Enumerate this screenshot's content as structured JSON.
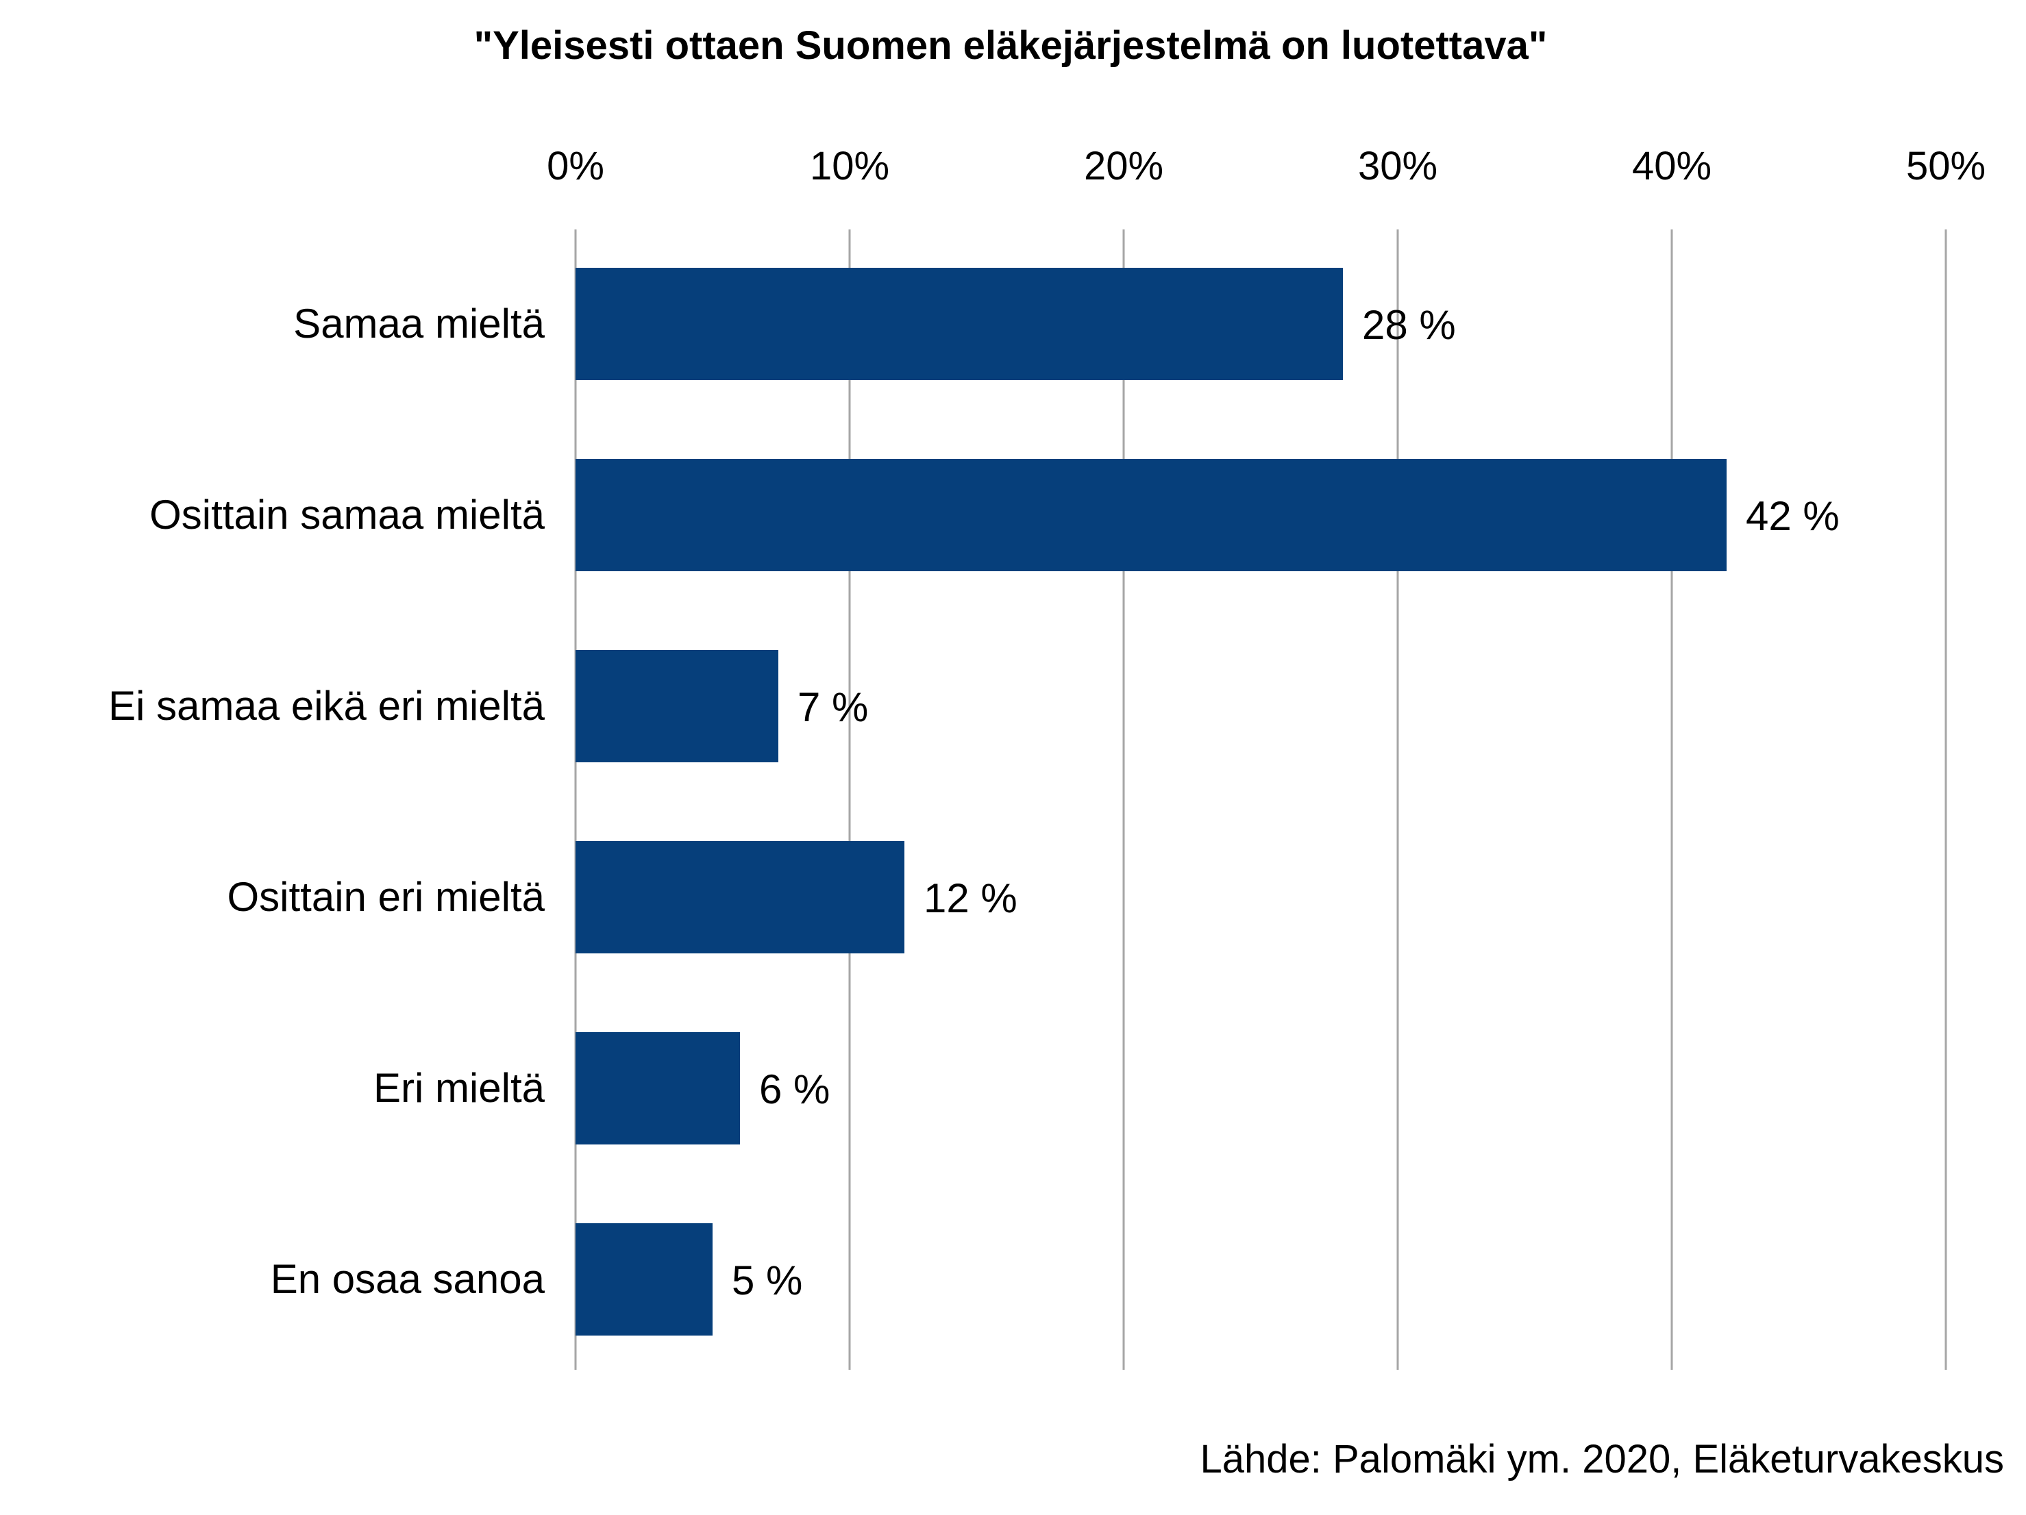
{
  "chart_data": {
    "type": "bar",
    "orientation": "horizontal",
    "title": "\"Yleisesti ottaen Suomen eläkejärjestelmä on luotettava\"",
    "categories": [
      "Samaa mieltä",
      "Osittain samaa mieltä",
      "Ei samaa eikä eri mieltä",
      "Osittain eri mieltä",
      "Eri mieltä",
      "En osaa sanoa"
    ],
    "values": [
      28,
      42,
      7.4,
      12,
      6,
      5
    ],
    "data_labels": [
      "28 %",
      "42 %",
      "7 %",
      "12 %",
      "6 %",
      "5 %"
    ],
    "xlim": [
      0,
      50
    ],
    "xticks": [
      0,
      10,
      20,
      30,
      40,
      50
    ],
    "xtick_labels": [
      "0%",
      "10%",
      "20%",
      "30%",
      "40%",
      "50%"
    ],
    "x_axis_position": "top",
    "grid": true,
    "legend": "none",
    "bar_color": "#063F7B",
    "grid_color": "#A6A6A6"
  },
  "source_note": "Lähde: Palomäki ym. 2020, Eläketurvakeskus"
}
